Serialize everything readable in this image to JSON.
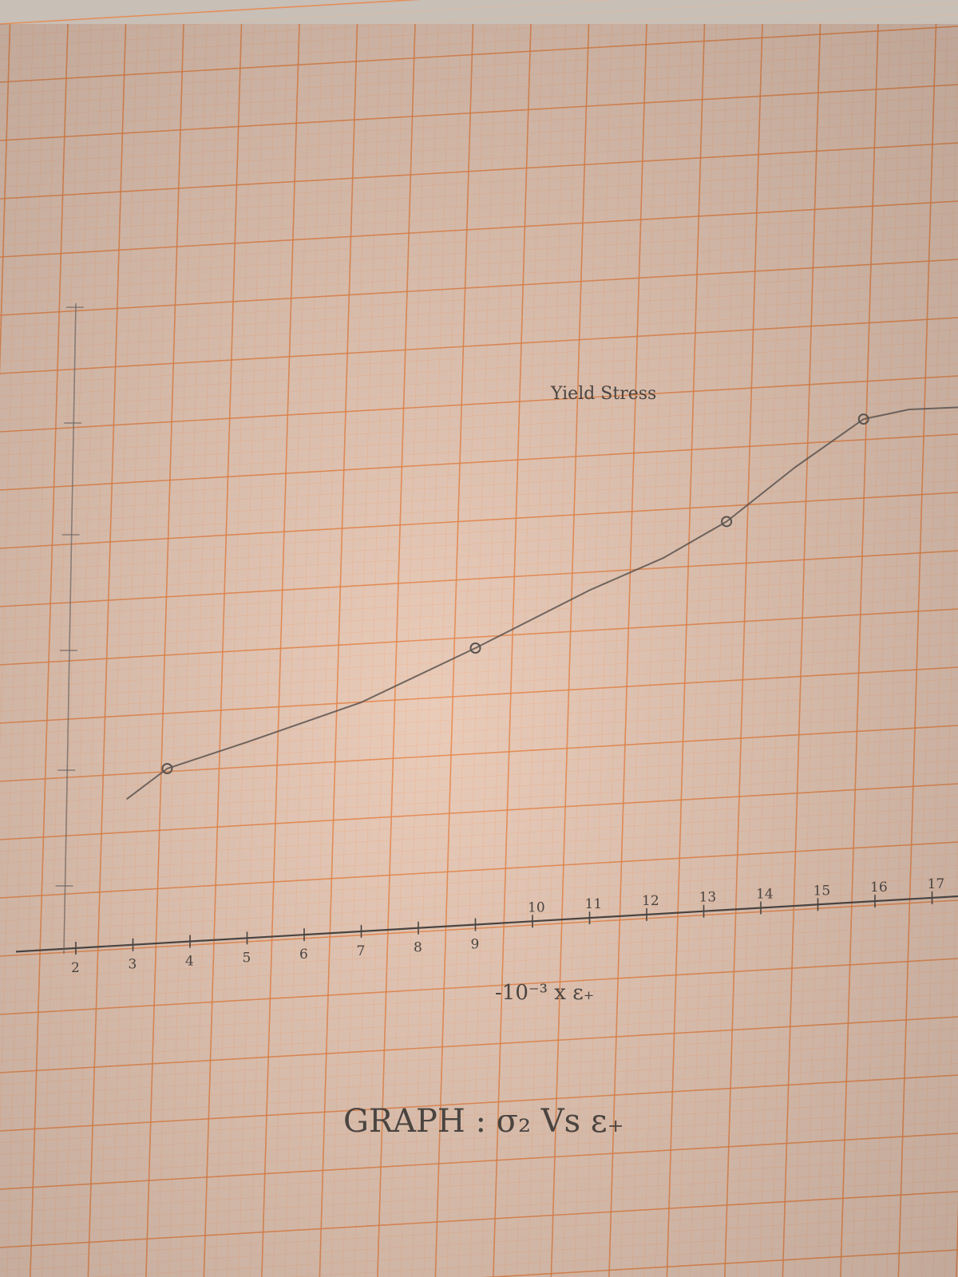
{
  "chart_data": {
    "type": "line",
    "title": "GRAPH : σ₂ Vs ε₊",
    "annotation": "Yield Stress",
    "xlabel": "-10⁻³ x ε₊",
    "ylabel": "",
    "x_ticks": [
      2,
      3,
      4,
      5,
      6,
      7,
      8,
      9,
      10,
      11,
      12,
      13,
      14,
      15,
      16,
      17
    ],
    "y_ticks": [],
    "xlim": [
      1.2,
      17.6
    ],
    "points": [
      {
        "x": 3.6,
        "y": 0.0
      },
      {
        "x": 9.0,
        "y": 1.0
      },
      {
        "x": 13.4,
        "y": 2.05
      },
      {
        "x": 15.8,
        "y": 2.9
      }
    ],
    "curve": [
      {
        "x": 2.9,
        "y": -0.25
      },
      {
        "x": 3.6,
        "y": 0.0
      },
      {
        "x": 5.0,
        "y": 0.22
      },
      {
        "x": 7.0,
        "y": 0.55
      },
      {
        "x": 9.0,
        "y": 1.0
      },
      {
        "x": 11.0,
        "y": 1.48
      },
      {
        "x": 12.3,
        "y": 1.75
      },
      {
        "x": 13.4,
        "y": 2.05
      },
      {
        "x": 14.6,
        "y": 2.5
      },
      {
        "x": 15.8,
        "y": 2.9
      },
      {
        "x": 16.6,
        "y": 2.98
      },
      {
        "x": 17.6,
        "y": 3.0
      }
    ],
    "grid": true,
    "colors": {
      "paper": "#e9cbb9",
      "grid_major": "#e9874a",
      "grid_minor": "#f0b48e",
      "ink": "#5a5450"
    }
  }
}
